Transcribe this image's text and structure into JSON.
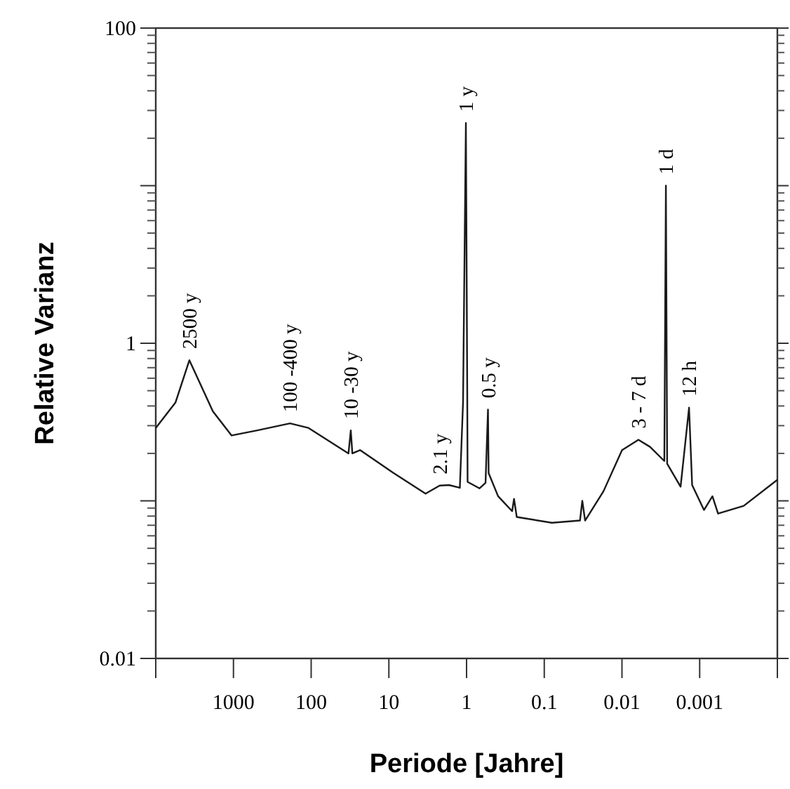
{
  "chart_data": {
    "type": "line",
    "xlabel": "Periode [Jahre]",
    "ylabel": "Relative Varianz",
    "log": "xy",
    "xlim": [
      10000,
      0.0001
    ],
    "xticks": [
      {
        "value": 10000,
        "label": null
      },
      1000,
      100,
      10,
      1,
      0.1,
      0.01,
      0.001,
      {
        "value": 0.0001,
        "label": null
      }
    ],
    "ylim": [
      0.01,
      100
    ],
    "yticks": [
      0.01,
      {
        "value": 0.1,
        "label": null
      },
      1,
      {
        "value": 10,
        "label": null
      },
      100
    ],
    "grid": false,
    "marker": "none",
    "line_style": "solid",
    "series": [
      {
        "color": "#1a1a1a",
        "x": [
          10000,
          5580,
          3690,
          1840,
          1060,
          494,
          187,
          108,
          33.1,
          30.9,
          29.5,
          23.4,
          8.87,
          3.37,
          2.22,
          1.68,
          1.22,
          1.11,
          1.02,
          0.98,
          0.97,
          0.68,
          0.57,
          0.53,
          0.52,
          0.393,
          0.259,
          0.245,
          0.226,
          0.0798,
          0.0347,
          0.0324,
          0.0298,
          0.0173,
          0.00998,
          0.00614,
          0.00435,
          0.00285,
          0.00272,
          0.00262,
          0.00176,
          0.00137,
          0.00125,
          0.00088,
          0.000685,
          0.00058,
          0.000271,
          0.0001
        ],
        "values": [
          0.29,
          0.42,
          0.78,
          0.37,
          0.26,
          0.28,
          0.31,
          0.29,
          0.2,
          0.28,
          0.2,
          0.21,
          0.151,
          0.111,
          0.125,
          0.126,
          0.121,
          0.42,
          25,
          0.5,
          0.132,
          0.12,
          0.13,
          0.38,
          0.15,
          0.107,
          0.086,
          0.103,
          0.079,
          0.0726,
          0.075,
          0.1,
          0.075,
          0.115,
          0.21,
          0.244,
          0.22,
          0.179,
          10,
          0.172,
          0.123,
          0.39,
          0.126,
          0.0875,
          0.107,
          0.083,
          0.093,
          0.136
        ]
      }
    ],
    "annotations": [
      {
        "text": "2500 y",
        "x": 3690,
        "y": 0.78
      },
      {
        "text": "100 -400 y",
        "x": 187,
        "y": 0.31
      },
      {
        "text": "10 -30 y",
        "x": 30.9,
        "y": 0.28
      },
      {
        "text": "2.1 y",
        "x": 2.22,
        "y": 0.125
      },
      {
        "text": "1 y",
        "x": 1.02,
        "y": 25
      },
      {
        "text": "0.5 y",
        "x": 0.53,
        "y": 0.38
      },
      {
        "text": "3 - 7 d",
        "x": 0.00614,
        "y": 0.244
      },
      {
        "text": "1 d",
        "x": 0.00272,
        "y": 10
      },
      {
        "text": "12 h",
        "x": 0.00137,
        "y": 0.39
      }
    ]
  }
}
